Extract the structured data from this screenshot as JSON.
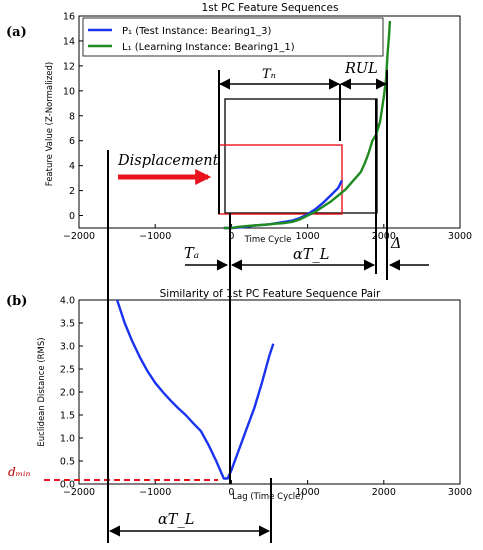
{
  "panel_labels": {
    "a": "(a)",
    "b": "(b)"
  },
  "annotations": {
    "tn": "Tₙ",
    "rul": "RUL",
    "displacement": "Displacement",
    "ta": "Tₐ",
    "alpha_tl_top": "αT_L",
    "delta": "Δ",
    "dmin": "dₘᵢₙ",
    "alpha_tl_bottom": "αT_L"
  },
  "colors": {
    "blue": "#1a33ee",
    "green": "#1f8a1f",
    "red": "#e8131c",
    "black": "#000000"
  },
  "chart_data": [
    {
      "type": "line",
      "title": "1st PC Feature Sequences",
      "xlabel": "Time Cycle",
      "ylabel": "Feature Value (Z-Normalized)",
      "xlim": [
        -2000,
        3000
      ],
      "ylim": [
        -1,
        16
      ],
      "xticks": [
        -2000,
        -1000,
        0,
        1000,
        2000,
        3000
      ],
      "yticks": [
        0,
        2,
        4,
        6,
        8,
        10,
        12,
        14,
        16
      ],
      "legend_position": "top-left",
      "series": [
        {
          "name": "P₁ (Test Instance: Bearing1_3)",
          "color": "#1a33ee",
          "x": [
            -100,
            0,
            100,
            200,
            300,
            400,
            500,
            600,
            700,
            800,
            900,
            1000,
            1100,
            1200,
            1300,
            1400,
            1450
          ],
          "y": [
            -1.0,
            -1.0,
            -0.95,
            -0.9,
            -0.8,
            -0.75,
            -0.7,
            -0.6,
            -0.5,
            -0.4,
            -0.2,
            0.1,
            0.5,
            1.0,
            1.6,
            2.2,
            2.8
          ]
        },
        {
          "name": "L₁ (Learning Instance: Bearing1_1)",
          "color": "#1f8a1f",
          "x": [
            -100,
            0,
            100,
            200,
            300,
            400,
            500,
            600,
            700,
            800,
            900,
            1000,
            1100,
            1200,
            1300,
            1400,
            1500,
            1600,
            1700,
            1750,
            1800,
            1850,
            1900,
            1950,
            2000,
            2030,
            2050,
            2070,
            2080
          ],
          "y": [
            -1.0,
            -1.0,
            -0.9,
            -0.85,
            -0.8,
            -0.75,
            -0.7,
            -0.65,
            -0.6,
            -0.5,
            -0.3,
            0.0,
            0.3,
            0.7,
            1.1,
            1.6,
            2.1,
            2.8,
            3.5,
            4.2,
            5.0,
            6.0,
            6.5,
            7.5,
            9.5,
            11.0,
            13.0,
            14.5,
            15.6
          ]
        }
      ]
    },
    {
      "type": "line",
      "title": "Similarity of 1st PC Feature Sequence Pair",
      "xlabel": "Lag (Time Cycle)",
      "ylabel": "Euclidean Distance (RMS)",
      "xlim": [
        -2000,
        3000
      ],
      "ylim": [
        0,
        4
      ],
      "xticks": [
        -2000,
        -1000,
        0,
        1000,
        2000,
        3000
      ],
      "yticks": [
        0.0,
        0.5,
        1.0,
        1.5,
        2.0,
        2.5,
        3.0,
        3.5,
        4.0
      ],
      "series": [
        {
          "color": "#1a33ee",
          "x": [
            -1500,
            -1400,
            -1300,
            -1200,
            -1100,
            -1000,
            -900,
            -800,
            -700,
            -600,
            -500,
            -400,
            -300,
            -200,
            -100,
            -50,
            0,
            100,
            200,
            300,
            400,
            500,
            550
          ],
          "y": [
            4.0,
            3.5,
            3.1,
            2.75,
            2.45,
            2.2,
            2.0,
            1.82,
            1.65,
            1.5,
            1.32,
            1.15,
            0.85,
            0.5,
            0.12,
            0.12,
            0.3,
            0.75,
            1.2,
            1.65,
            2.2,
            2.8,
            3.05
          ]
        }
      ]
    }
  ]
}
